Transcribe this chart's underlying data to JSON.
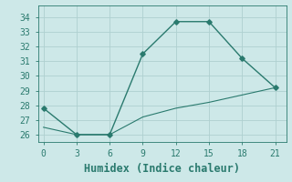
{
  "xlabel": "Humidex (Indice chaleur)",
  "line1_x": [
    0,
    3,
    6,
    9,
    12,
    15,
    18,
    21
  ],
  "line1_y": [
    27.8,
    26.0,
    26.0,
    31.5,
    33.7,
    33.7,
    31.2,
    29.2
  ],
  "line2_x": [
    0,
    3,
    6,
    9,
    12,
    15,
    18,
    21
  ],
  "line2_y": [
    26.5,
    26.0,
    26.0,
    27.2,
    27.8,
    28.2,
    28.7,
    29.2
  ],
  "line_color": "#2a7a6e",
  "bg_color": "#cde8e8",
  "grid_color": "#afd0d0",
  "xlim": [
    -0.5,
    22
  ],
  "ylim": [
    25.5,
    34.8
  ],
  "xticks": [
    0,
    3,
    6,
    9,
    12,
    15,
    18,
    21
  ],
  "yticks": [
    26,
    27,
    28,
    29,
    30,
    31,
    32,
    33,
    34
  ],
  "tick_fontsize": 7,
  "xlabel_fontsize": 8.5
}
